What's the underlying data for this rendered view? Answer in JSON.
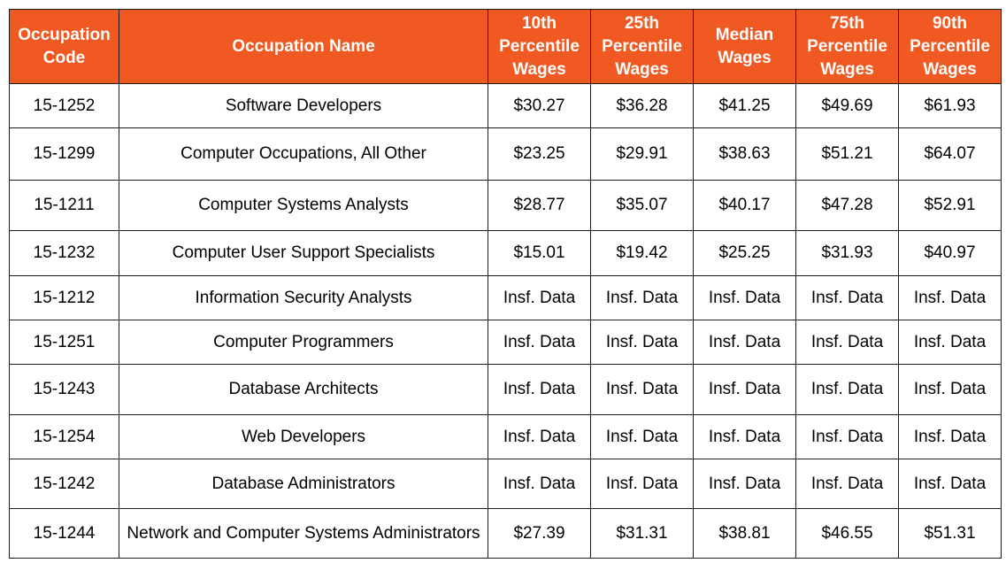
{
  "table": {
    "header": {
      "code": [
        "Occupation",
        "Code"
      ],
      "name": [
        "Occupation Name"
      ],
      "p10": [
        "10th",
        "Percentile",
        "Wages"
      ],
      "p25": [
        "25th",
        "Percentile",
        "Wages"
      ],
      "median": [
        "Median",
        "Wages"
      ],
      "p75": [
        "75th",
        "Percentile",
        "Wages"
      ],
      "p90": [
        "90th",
        "Percentile",
        "Wages"
      ]
    },
    "rows": [
      {
        "code": "15-1252",
        "name": "Software Developers",
        "p10": "$30.27",
        "p25": "$36.28",
        "median": "$41.25",
        "p75": "$49.69",
        "p90": "$61.93"
      },
      {
        "code": "15-1299",
        "name": "Computer Occupations, All Other",
        "p10": "$23.25",
        "p25": "$29.91",
        "median": "$38.63",
        "p75": "$51.21",
        "p90": "$64.07"
      },
      {
        "code": "15-1211",
        "name": "Computer Systems Analysts",
        "p10": "$28.77",
        "p25": "$35.07",
        "median": "$40.17",
        "p75": "$47.28",
        "p90": "$52.91"
      },
      {
        "code": "15-1232",
        "name": "Computer User Support Specialists",
        "p10": "$15.01",
        "p25": "$19.42",
        "median": "$25.25",
        "p75": "$31.93",
        "p90": "$40.97"
      },
      {
        "code": "15-1212",
        "name": "Information Security Analysts",
        "p10": "Insf. Data",
        "p25": "Insf. Data",
        "median": "Insf. Data",
        "p75": "Insf. Data",
        "p90": "Insf. Data"
      },
      {
        "code": "15-1251",
        "name": "Computer Programmers",
        "p10": "Insf. Data",
        "p25": "Insf. Data",
        "median": "Insf. Data",
        "p75": "Insf. Data",
        "p90": "Insf. Data"
      },
      {
        "code": "15-1243",
        "name": "Database Architects",
        "p10": "Insf. Data",
        "p25": "Insf. Data",
        "median": "Insf. Data",
        "p75": "Insf. Data",
        "p90": "Insf. Data"
      },
      {
        "code": "15-1254",
        "name": "Web Developers",
        "p10": "Insf. Data",
        "p25": "Insf. Data",
        "median": "Insf. Data",
        "p75": "Insf. Data",
        "p90": "Insf. Data"
      },
      {
        "code": "15-1242",
        "name": "Database Administrators",
        "p10": "Insf. Data",
        "p25": "Insf. Data",
        "median": "Insf. Data",
        "p75": "Insf. Data",
        "p90": "Insf. Data"
      },
      {
        "code": "15-1244",
        "name": "Network and Computer Systems Administrators",
        "p10": "$27.39",
        "p25": "$31.31",
        "median": "$38.81",
        "p75": "$46.55",
        "p90": "$51.31"
      }
    ]
  },
  "colors": {
    "header_bg": "#f05a22",
    "header_text": "#ffffff",
    "border": "#1a1a1a"
  }
}
